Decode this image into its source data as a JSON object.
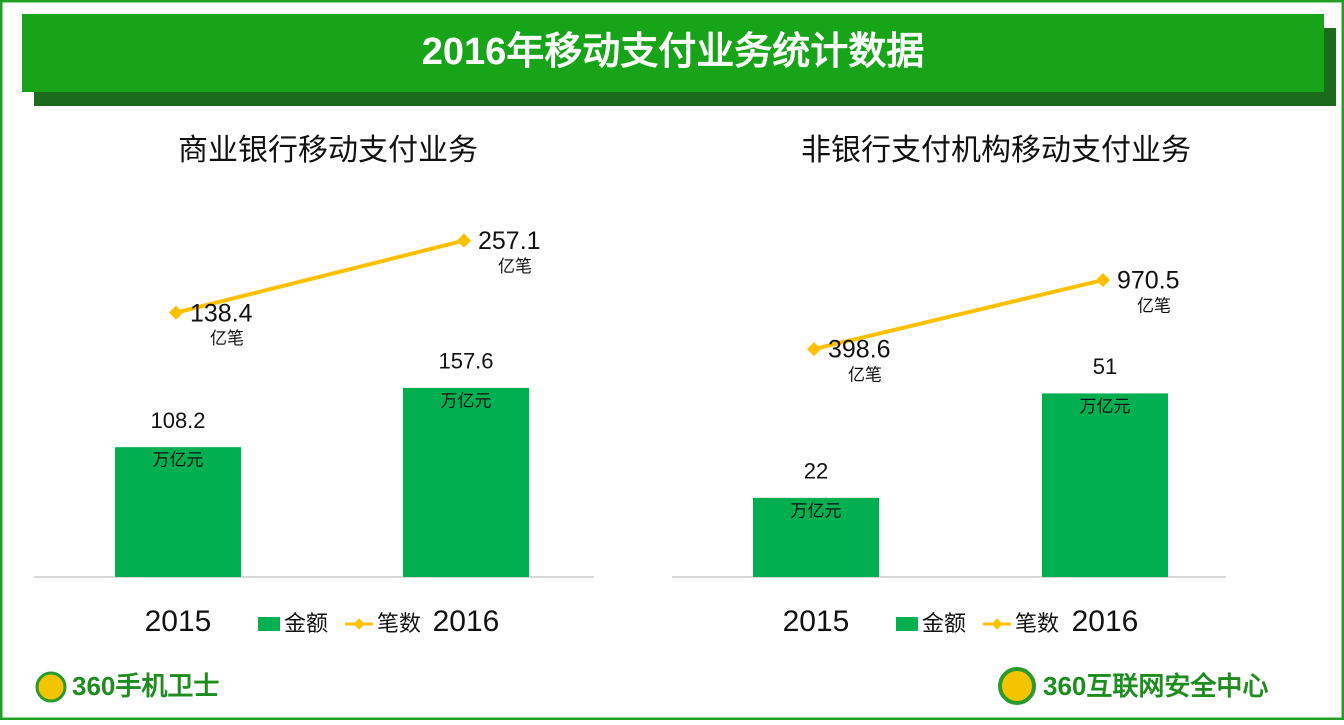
{
  "header": {
    "title": "2016年移动支付业务统计数据"
  },
  "footer": {
    "left_logo": "360手机卫士",
    "right_logo": "360互联网安全中心"
  },
  "chart_data": [
    {
      "type": "bar_line",
      "title": "商业银行移动支付业务",
      "categories": [
        "2015",
        "2016"
      ],
      "series": [
        {
          "name": "金额",
          "type": "bar",
          "color": "#00b050",
          "unit": "万亿元",
          "values": [
            108.2,
            157.6
          ]
        },
        {
          "name": "笔数",
          "type": "line",
          "color": "#ffc000",
          "unit": "亿笔",
          "axis": "y2",
          "values": [
            138.4,
            257.1
          ]
        }
      ],
      "ylim": [
        0,
        300
      ],
      "y2lim": [
        -297,
        296
      ]
    },
    {
      "type": "bar_line",
      "title": "非银行支付机构移动支付业务",
      "categories": [
        "2015",
        "2016"
      ],
      "series": [
        {
          "name": "金额",
          "type": "bar",
          "color": "#00b050",
          "unit": "万亿元",
          "values": [
            22.0,
            51.0
          ]
        },
        {
          "name": "笔数",
          "type": "line",
          "color": "#ffc000",
          "unit": "亿笔",
          "axis": "y2",
          "values": [
            398.6,
            970.5
          ]
        }
      ],
      "ylim": [
        0,
        100
      ],
      "y2lim": [
        -1490,
        1493
      ]
    }
  ]
}
